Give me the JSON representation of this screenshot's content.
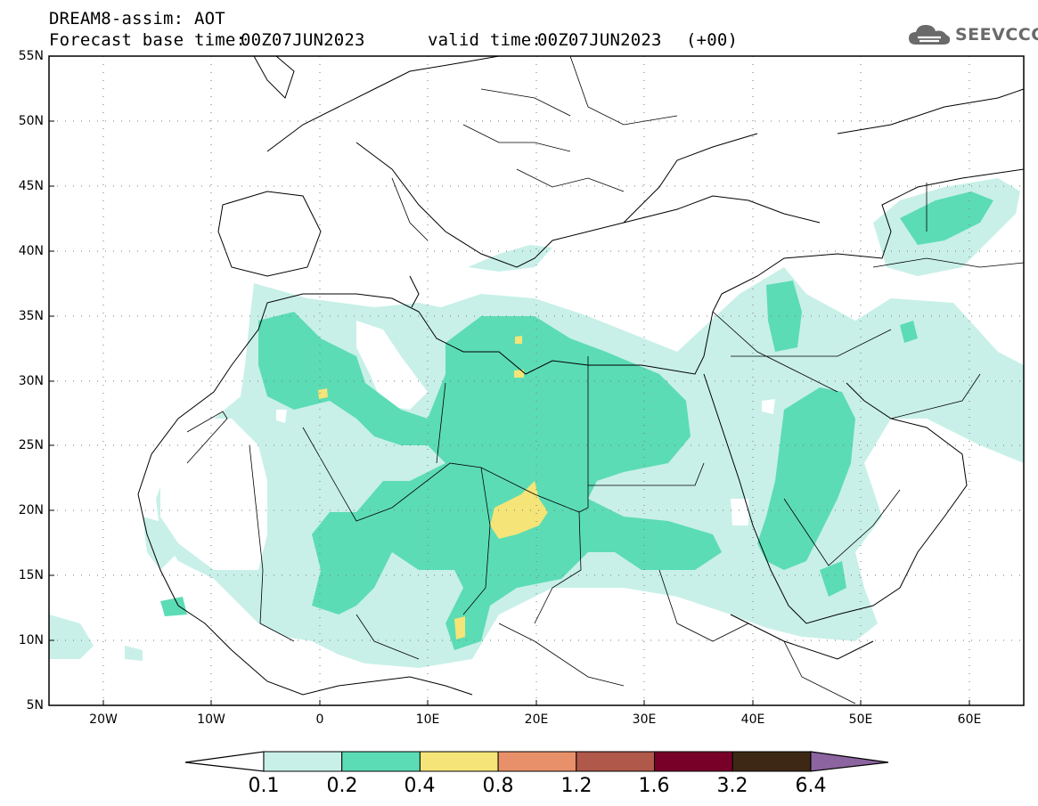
{
  "header": {
    "title": "DREAM8-assim: AOT",
    "base_label": "Forecast base time:",
    "base_value": "00Z07JUN2023",
    "valid_label": "valid time:",
    "valid_value": "00Z07JUN2023",
    "valid_step": "(+00)"
  },
  "logo": {
    "text": "SEEVCCC",
    "icon": "cloud-logo-icon"
  },
  "map": {
    "lon_range": [
      -25,
      65
    ],
    "lat_range": [
      5,
      55
    ],
    "lat_ticks": [
      "55N",
      "50N",
      "45N",
      "40N",
      "35N",
      "30N",
      "25N",
      "20N",
      "15N",
      "10N",
      "5N"
    ],
    "lon_ticks": [
      "20W",
      "10W",
      "0",
      "10E",
      "20E",
      "30E",
      "40E",
      "50E",
      "60E"
    ],
    "grid": "dotted"
  },
  "colorbar": {
    "labels": [
      "0.1",
      "0.2",
      "0.4",
      "0.8",
      "1.2",
      "1.6",
      "3.2",
      "6.4"
    ],
    "colors": [
      "#c8f0e8",
      "#5cdcb4",
      "#f5e478",
      "#e8906a",
      "#b0584a",
      "#780028",
      "#3c2814",
      "#8c64a0"
    ]
  }
}
